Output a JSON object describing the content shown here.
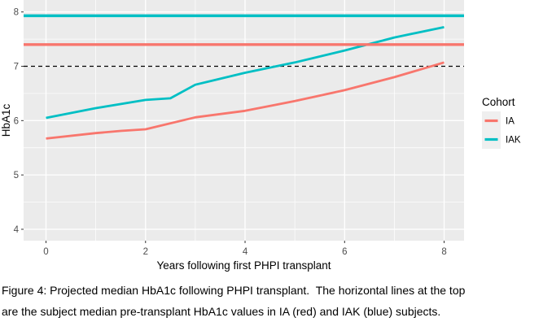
{
  "figure": {
    "caption_line1": "Figure 4: Projected median HbA1c following PHPI transplant.  The horizontal lines at the top",
    "caption_line2": "are the subject median pre-transplant HbA1c values in IA (red) and IAK (blue) subjects."
  },
  "chart_data": {
    "type": "line",
    "title": "",
    "xlabel": "Years following first PHPI transplant",
    "ylabel": "HbA1c",
    "x_ticks": [
      0,
      2,
      4,
      6,
      8
    ],
    "y_ticks": [
      4,
      5,
      6,
      7,
      8
    ],
    "xlim": [
      -0.45,
      8.4
    ],
    "ylim": [
      3.79,
      8.22
    ],
    "grid": "major-and-minor, white on gray panel",
    "panel_bg": "#EBEBEB",
    "grid_color": "#FFFFFF",
    "tick_label_color": "#4D4D4D",
    "axis_title_color": "#000000",
    "legend": {
      "title": "Cohort",
      "position": "right",
      "key_bg": "#EFEFEF",
      "entries": [
        {
          "label": "IA",
          "color": "#F8766D"
        },
        {
          "label": "IAK",
          "color": "#00BFC4"
        }
      ]
    },
    "series": [
      {
        "name": "IA",
        "color": "#F8766D",
        "x": [
          0,
          1,
          1.5,
          2,
          3,
          4,
          5,
          6,
          7,
          8
        ],
        "y": [
          5.67,
          5.77,
          5.81,
          5.84,
          6.06,
          6.18,
          6.36,
          6.56,
          6.8,
          7.07
        ]
      },
      {
        "name": "IAK",
        "color": "#00BFC4",
        "x": [
          0,
          1,
          2,
          2.5,
          3,
          4,
          5,
          6,
          7,
          8
        ],
        "y": [
          6.05,
          6.23,
          6.38,
          6.41,
          6.66,
          6.88,
          7.07,
          7.29,
          7.53,
          7.72
        ]
      }
    ],
    "reference_lines": [
      {
        "y": 7.0,
        "color": "#000000",
        "dash": "dashed",
        "width": 1.3
      },
      {
        "y": 7.4,
        "color": "#F8766D",
        "dash": "solid",
        "width": 3.4
      },
      {
        "y": 7.93,
        "color": "#00BFC4",
        "dash": "solid",
        "width": 3.4
      }
    ]
  }
}
